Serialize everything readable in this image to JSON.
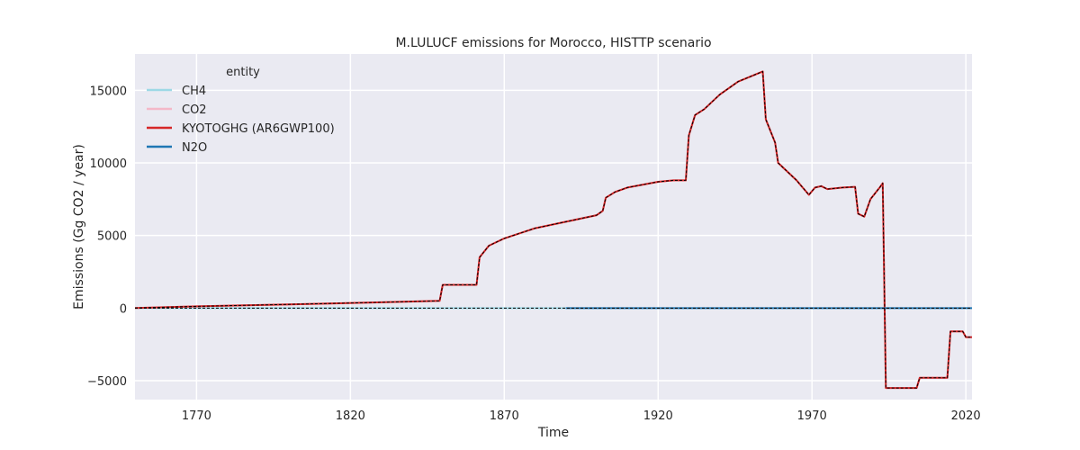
{
  "chart_data": {
    "type": "line",
    "title": "M.LULUCF emissions for Morocco, HISTTP scenario",
    "xlabel": "Time",
    "ylabel": "Emissions (Gg CO2 / year)",
    "xlim": [
      1750,
      2022
    ],
    "ylim": [
      -6300,
      17500
    ],
    "xticks": [
      1770,
      1820,
      1870,
      1920,
      1970,
      2020
    ],
    "yticks": [
      -5000,
      0,
      5000,
      10000,
      15000
    ],
    "ytick_labels": [
      "−5000",
      "0",
      "5000",
      "10000",
      "15000"
    ],
    "grid": true,
    "legend": {
      "title": "entity",
      "placement": "top-left"
    },
    "series": [
      {
        "name": "CH4",
        "color": "#9dd9e6",
        "width": 2,
        "dash": "",
        "points": [
          [
            1750,
            0
          ],
          [
            1890,
            0
          ]
        ]
      },
      {
        "name": "CO2",
        "color": "#f4b8c8",
        "width": 2,
        "dash": "",
        "points": [
          [
            1750,
            10
          ],
          [
            1770,
            120
          ],
          [
            1800,
            260
          ],
          [
            1830,
            400
          ],
          [
            1849,
            500
          ],
          [
            1850,
            1600
          ],
          [
            1861,
            1600
          ],
          [
            1862,
            3500
          ],
          [
            1865,
            4300
          ],
          [
            1870,
            4800
          ],
          [
            1880,
            5500
          ],
          [
            1890,
            5950
          ],
          [
            1900,
            6400
          ],
          [
            1902,
            6700
          ],
          [
            1903,
            7600
          ],
          [
            1906,
            8000
          ],
          [
            1910,
            8300
          ],
          [
            1920,
            8700
          ],
          [
            1925,
            8800
          ],
          [
            1929,
            8800
          ],
          [
            1930,
            11900
          ],
          [
            1932,
            13300
          ],
          [
            1935,
            13700
          ],
          [
            1940,
            14700
          ],
          [
            1946,
            15600
          ],
          [
            1954,
            16300
          ],
          [
            1955,
            13000
          ],
          [
            1958,
            11400
          ],
          [
            1959,
            10000
          ],
          [
            1965,
            8800
          ],
          [
            1969,
            7800
          ],
          [
            1971,
            8300
          ],
          [
            1973,
            8400
          ],
          [
            1975,
            8200
          ],
          [
            1980,
            8300
          ],
          [
            1984,
            8350
          ],
          [
            1985,
            6500
          ],
          [
            1987,
            6300
          ],
          [
            1989,
            7500
          ],
          [
            1992,
            8300
          ],
          [
            1993,
            8600
          ],
          [
            1994,
            -5500
          ],
          [
            2004,
            -5500
          ],
          [
            2005,
            -4800
          ],
          [
            2014,
            -4800
          ],
          [
            2015,
            -1600
          ],
          [
            2019,
            -1600
          ],
          [
            2020,
            -2000
          ],
          [
            2026,
            -2000
          ]
        ]
      },
      {
        "name": "KYOTOGHG (AR6GWP100)",
        "color": "#d62728",
        "width": 2,
        "dash": "",
        "points": [
          [
            1750,
            10
          ],
          [
            1770,
            120
          ],
          [
            1800,
            260
          ],
          [
            1830,
            400
          ],
          [
            1849,
            500
          ],
          [
            1850,
            1600
          ],
          [
            1861,
            1600
          ],
          [
            1862,
            3500
          ],
          [
            1865,
            4300
          ],
          [
            1870,
            4800
          ],
          [
            1880,
            5500
          ],
          [
            1890,
            5950
          ],
          [
            1900,
            6400
          ],
          [
            1902,
            6700
          ],
          [
            1903,
            7600
          ],
          [
            1906,
            8000
          ],
          [
            1910,
            8300
          ],
          [
            1920,
            8700
          ],
          [
            1925,
            8800
          ],
          [
            1929,
            8800
          ],
          [
            1930,
            11900
          ],
          [
            1932,
            13300
          ],
          [
            1935,
            13700
          ],
          [
            1940,
            14700
          ],
          [
            1946,
            15600
          ],
          [
            1954,
            16300
          ],
          [
            1955,
            13000
          ],
          [
            1958,
            11400
          ],
          [
            1959,
            10000
          ],
          [
            1965,
            8800
          ],
          [
            1969,
            7800
          ],
          [
            1971,
            8300
          ],
          [
            1973,
            8400
          ],
          [
            1975,
            8200
          ],
          [
            1980,
            8300
          ],
          [
            1984,
            8350
          ],
          [
            1985,
            6500
          ],
          [
            1987,
            6300
          ],
          [
            1989,
            7500
          ],
          [
            1992,
            8300
          ],
          [
            1993,
            8600
          ],
          [
            1994,
            -5500
          ],
          [
            2004,
            -5500
          ],
          [
            2005,
            -4800
          ],
          [
            2014,
            -4800
          ],
          [
            2015,
            -1600
          ],
          [
            2019,
            -1600
          ],
          [
            2020,
            -2000
          ],
          [
            2026,
            -2000
          ]
        ]
      },
      {
        "name": "N2O",
        "color": "#1f77b4",
        "width": 2,
        "dash": "",
        "points": [
          [
            1890,
            0
          ],
          [
            2026,
            0
          ]
        ]
      },
      {
        "name": "",
        "color": "#000000",
        "width": 1,
        "dash": "3,2",
        "points": [
          [
            1750,
            10
          ],
          [
            1770,
            120
          ],
          [
            1800,
            260
          ],
          [
            1830,
            400
          ],
          [
            1849,
            500
          ],
          [
            1850,
            1600
          ],
          [
            1861,
            1600
          ],
          [
            1862,
            3500
          ],
          [
            1865,
            4300
          ],
          [
            1870,
            4800
          ],
          [
            1880,
            5500
          ],
          [
            1890,
            5950
          ],
          [
            1900,
            6400
          ],
          [
            1902,
            6700
          ],
          [
            1903,
            7600
          ],
          [
            1906,
            8000
          ],
          [
            1910,
            8300
          ],
          [
            1920,
            8700
          ],
          [
            1925,
            8800
          ],
          [
            1929,
            8800
          ],
          [
            1930,
            11900
          ],
          [
            1932,
            13300
          ],
          [
            1935,
            13700
          ],
          [
            1940,
            14700
          ],
          [
            1946,
            15600
          ],
          [
            1954,
            16300
          ],
          [
            1955,
            13000
          ],
          [
            1958,
            11400
          ],
          [
            1959,
            10000
          ],
          [
            1965,
            8800
          ],
          [
            1969,
            7800
          ],
          [
            1971,
            8300
          ],
          [
            1973,
            8400
          ],
          [
            1975,
            8200
          ],
          [
            1980,
            8300
          ],
          [
            1984,
            8350
          ],
          [
            1985,
            6500
          ],
          [
            1987,
            6300
          ],
          [
            1989,
            7500
          ],
          [
            1992,
            8300
          ],
          [
            1993,
            8600
          ],
          [
            1994,
            -5500
          ],
          [
            2004,
            -5500
          ],
          [
            2005,
            -4800
          ],
          [
            2014,
            -4800
          ],
          [
            2015,
            -1600
          ],
          [
            2019,
            -1600
          ],
          [
            2020,
            -2000
          ],
          [
            2026,
            -2000
          ]
        ]
      },
      {
        "name": "",
        "color": "#000000",
        "width": 1,
        "dash": "3,2",
        "points": [
          [
            1750,
            0
          ],
          [
            2026,
            0
          ]
        ]
      }
    ]
  }
}
